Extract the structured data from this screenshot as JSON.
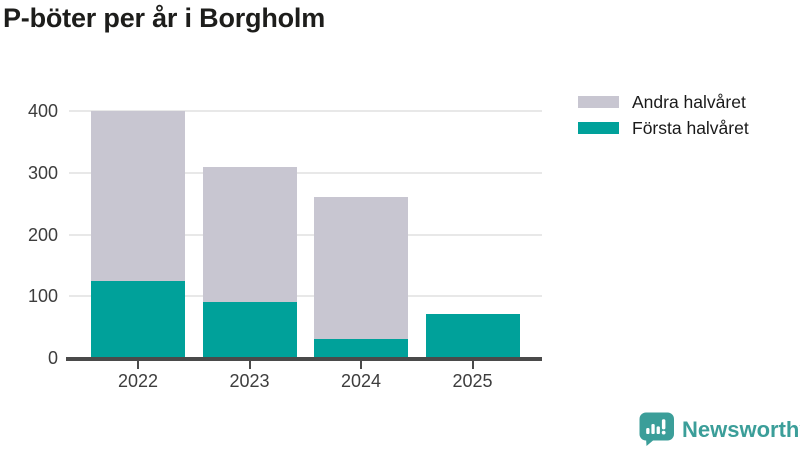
{
  "chart_data": {
    "type": "bar",
    "stacked": true,
    "title": "P-böter per år i Borgholm",
    "categories": [
      "2022",
      "2023",
      "2024",
      "2025"
    ],
    "series": [
      {
        "name": "Första halvåret",
        "color": "#00a19a",
        "values": [
          125,
          90,
          31,
          71
        ]
      },
      {
        "name": "Andra halvåret",
        "color": "#c8c6d1",
        "values": [
          275,
          220,
          230,
          0
        ]
      }
    ],
    "ylim": [
      0,
      400
    ],
    "yticks": [
      "0",
      "100",
      "200",
      "300",
      "400"
    ],
    "xlabel": "",
    "ylabel": "",
    "grid": true,
    "legend": {
      "position": "top-right",
      "entries": [
        "Andra halvåret",
        "Första halvåret"
      ]
    },
    "colors": {
      "first_half": "#00a19a",
      "second_half": "#c8c6d1",
      "gridline": "#e8e8e8",
      "axis": "#4a4a4a"
    }
  },
  "branding": {
    "logo_text": "Newsworthy",
    "logo_icon": "bar-chart-bubble-icon",
    "logo_color": "#3b9e99"
  }
}
